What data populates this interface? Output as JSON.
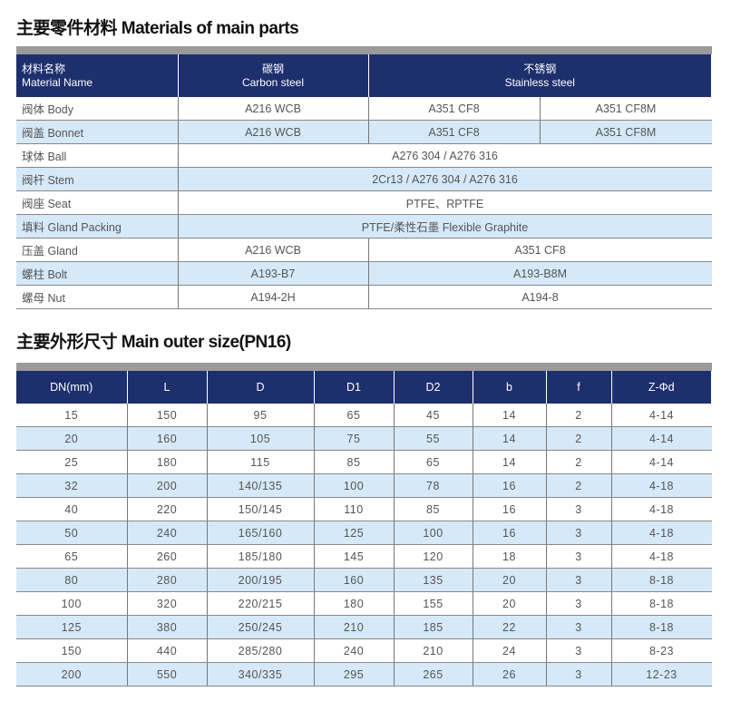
{
  "materials": {
    "title": "主要零件材料 Materials of main parts",
    "header": {
      "name_cn": "材料名称",
      "name_en": "Material Name",
      "carbon_cn": "碳钢",
      "carbon_en": "Carbon steel",
      "stainless_cn": "不锈钢",
      "stainless_en": "Stainless steel"
    },
    "rows": [
      {
        "part": "阀体  Body",
        "carbon": "A216  WCB",
        "ss1": "A351  CF8",
        "ss2": "A351  CF8M"
      },
      {
        "part": "阀盖  Bonnet",
        "carbon": "A216  WCB",
        "ss1": "A351  CF8",
        "ss2": "A351  CF8M"
      },
      {
        "part": "球体  Ball",
        "all": "A276 304 / A276 316"
      },
      {
        "part": "阀杆  Stem",
        "all": "2Cr13 / A276 304 / A276 316"
      },
      {
        "part": "阀座  Seat",
        "all": "PTFE、RPTFE"
      },
      {
        "part": "填料  Gland Packing",
        "all": "PTFE/柔性石墨  Flexible Graphite"
      },
      {
        "part": "压盖  Gland",
        "carbon": "A216  WCB",
        "ss": "A351  CF8"
      },
      {
        "part": "螺柱  Bolt",
        "carbon": "A193-B7",
        "ss": "A193-B8M"
      },
      {
        "part": "螺母  Nut",
        "carbon": "A194-2H",
        "ss": "A194-8"
      }
    ]
  },
  "sizes": {
    "title": "主要外形尺寸 Main outer size(PN16)",
    "columns": [
      "DN(mm)",
      "L",
      "D",
      "D1",
      "D2",
      "b",
      "f",
      "Z-Φd"
    ],
    "rows": [
      [
        "15",
        "150",
        "95",
        "65",
        "45",
        "14",
        "2",
        "4-14"
      ],
      [
        "20",
        "160",
        "105",
        "75",
        "55",
        "14",
        "2",
        "4-14"
      ],
      [
        "25",
        "180",
        "115",
        "85",
        "65",
        "14",
        "2",
        "4-14"
      ],
      [
        "32",
        "200",
        "140/135",
        "100",
        "78",
        "16",
        "2",
        "4-18"
      ],
      [
        "40",
        "220",
        "150/145",
        "110",
        "85",
        "16",
        "3",
        "4-18"
      ],
      [
        "50",
        "240",
        "165/160",
        "125",
        "100",
        "16",
        "3",
        "4-18"
      ],
      [
        "65",
        "260",
        "185/180",
        "145",
        "120",
        "18",
        "3",
        "4-18"
      ],
      [
        "80",
        "280",
        "200/195",
        "160",
        "135",
        "20",
        "3",
        "8-18"
      ],
      [
        "100",
        "320",
        "220/215",
        "180",
        "155",
        "20",
        "3",
        "8-18"
      ],
      [
        "125",
        "380",
        "250/245",
        "210",
        "185",
        "22",
        "3",
        "8-18"
      ],
      [
        "150",
        "440",
        "285/280",
        "240",
        "210",
        "24",
        "3",
        "8-23"
      ],
      [
        "200",
        "550",
        "340/335",
        "295",
        "265",
        "26",
        "3",
        "12-23"
      ]
    ]
  }
}
